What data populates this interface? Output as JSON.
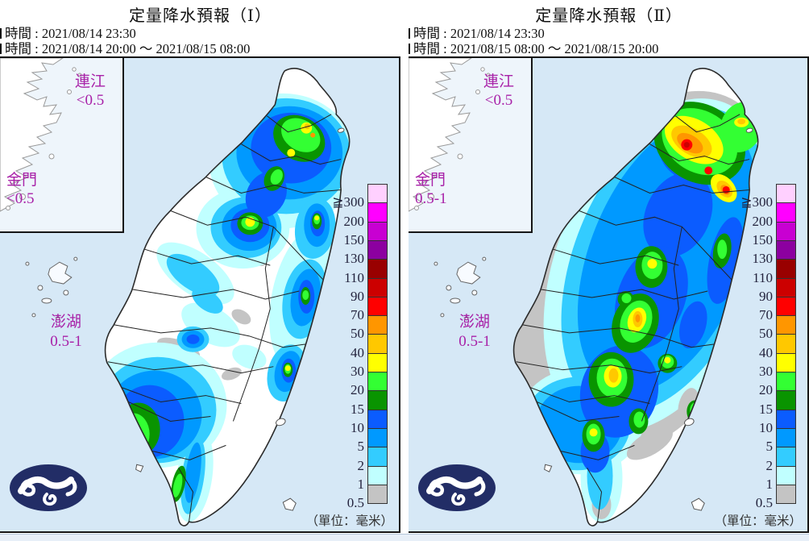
{
  "colors": {
    "sea": "#d6e8f6",
    "inset_bg": "#eef5fb",
    "land": "#ffffff",
    "coastline": "#2b2b2b",
    "island_label": "#a821a8",
    "logo_navy": "#222d66"
  },
  "panels": [
    {
      "title": "定量降水預報（Ⅰ）",
      "issue_time": "時間 : 2021/08/14 23:30",
      "forecast_time": "時間 : 2021/08/14 20:00 ～ 2021/08/15 08:00",
      "lienchiang": {
        "name": "連江",
        "value": "<0.5"
      },
      "kinmen": {
        "name": "金門",
        "value": "<0.5"
      },
      "penghu": {
        "name": "澎湖",
        "value": "0.5-1"
      },
      "unit": "（單位：毫米）"
    },
    {
      "title": "定量降水預報（Ⅱ）",
      "issue_time": "時間 : 2021/08/14 23:30",
      "forecast_time": "時間 : 2021/08/15 08:00 ～ 2021/08/15 20:00",
      "lienchiang": {
        "name": "連江",
        "value": "<0.5"
      },
      "kinmen": {
        "name": "金門",
        "value": "0.5-1"
      },
      "penghu": {
        "name": "澎湖",
        "value": "0.5-1"
      },
      "unit": "（單位：毫米）"
    }
  ],
  "legend": {
    "labels": [
      "≧300",
      "200",
      "150",
      "130",
      "110",
      "90",
      "70",
      "50",
      "40",
      "30",
      "20",
      "15",
      "10",
      "5",
      "2",
      "1",
      "0.5"
    ],
    "colors": [
      "#ffd0ff",
      "#ff00ff",
      "#c800d2",
      "#8c00a0",
      "#990000",
      "#cc0000",
      "#ff0000",
      "#ff9600",
      "#ffc800",
      "#ffff00",
      "#33ff33",
      "#099400",
      "#0b5cff",
      "#0099ff",
      "#33ccff",
      "#c0ffff",
      "#c4c4c4"
    ],
    "unit": "（單位：毫米）"
  }
}
